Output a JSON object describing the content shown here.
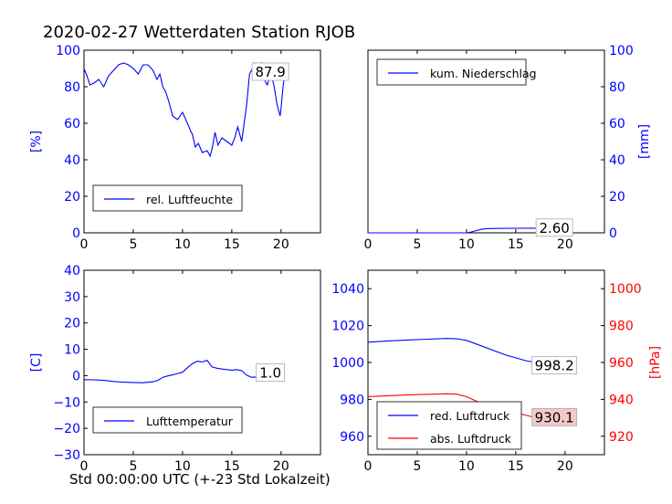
{
  "figure": {
    "title": "2020-02-27 Wetterdaten Station RJOB",
    "xlabel": "Std 00:00:00 UTC (+-23 Std Lokalzeit)"
  },
  "colors": {
    "blue": "#0000ff",
    "red": "#ff0000",
    "black": "#000000"
  },
  "chart_data": [
    {
      "type": "line",
      "panel": "top-left",
      "xlim": [
        0,
        24
      ],
      "ylim": [
        0,
        100
      ],
      "x_ticks": [
        "0",
        "5",
        "10",
        "15",
        "20"
      ],
      "y_ticks": [
        "0",
        "20",
        "40",
        "60",
        "80",
        "100"
      ],
      "ylabel": "[%]",
      "annotation": "87.9",
      "legend": "lower-left",
      "series": [
        {
          "name": "rel. Luftfeuchte",
          "color": "#0000ff",
          "points": [
            [
              0,
              90
            ],
            [
              0.3,
              86
            ],
            [
              0.6,
              81
            ],
            [
              1,
              82
            ],
            [
              1.5,
              84
            ],
            [
              2,
              80
            ],
            [
              2.5,
              86
            ],
            [
              3,
              89
            ],
            [
              3.5,
              92
            ],
            [
              4,
              93
            ],
            [
              4.5,
              92
            ],
            [
              5,
              90
            ],
            [
              5.5,
              87
            ],
            [
              6,
              92
            ],
            [
              6.5,
              92
            ],
            [
              7,
              89
            ],
            [
              7.4,
              84
            ],
            [
              7.7,
              87
            ],
            [
              8,
              80
            ],
            [
              8.3,
              77
            ],
            [
              8.6,
              72
            ],
            [
              9,
              64
            ],
            [
              9.5,
              62
            ],
            [
              10,
              66
            ],
            [
              10.5,
              60
            ],
            [
              10.8,
              56
            ],
            [
              11,
              54
            ],
            [
              11.3,
              47
            ],
            [
              11.6,
              49
            ],
            [
              12,
              44
            ],
            [
              12.5,
              45
            ],
            [
              12.8,
              42
            ],
            [
              13,
              46
            ],
            [
              13.3,
              55
            ],
            [
              13.6,
              48
            ],
            [
              14,
              52
            ],
            [
              14.5,
              50
            ],
            [
              15,
              48
            ],
            [
              15.3,
              52
            ],
            [
              15.6,
              58
            ],
            [
              16,
              50
            ],
            [
              16.5,
              70
            ],
            [
              16.8,
              87
            ],
            [
              17,
              89
            ],
            [
              17.3,
              93
            ],
            [
              17.6,
              90
            ],
            [
              18,
              93
            ],
            [
              18.3,
              84
            ],
            [
              18.6,
              81
            ],
            [
              19,
              87
            ],
            [
              19.3,
              80
            ],
            [
              19.6,
              70
            ],
            [
              19.9,
              64
            ],
            [
              20,
              68
            ],
            [
              20.2,
              80
            ],
            [
              20.4,
              88
            ]
          ]
        }
      ]
    },
    {
      "type": "line",
      "panel": "top-right",
      "xlim": [
        0,
        24
      ],
      "ylim": [
        0,
        100
      ],
      "x_ticks": [
        "0",
        "5",
        "10",
        "15",
        "20"
      ],
      "y_ticks": [
        "0",
        "20",
        "40",
        "60",
        "80",
        "100"
      ],
      "ylabel": "[mm]",
      "annotation": "2.60",
      "legend": "upper-left",
      "series": [
        {
          "name": "kum. Niederschlag",
          "color": "#0000ff",
          "points": [
            [
              0,
              0
            ],
            [
              10,
              0
            ],
            [
              10.5,
              0.5
            ],
            [
              11,
              1.2
            ],
            [
              11.5,
              1.9
            ],
            [
              12,
              2.3
            ],
            [
              13,
              2.4
            ],
            [
              15,
              2.5
            ],
            [
              18,
              2.55
            ],
            [
              20.4,
              2.6
            ]
          ]
        }
      ]
    },
    {
      "type": "line",
      "panel": "bottom-left",
      "xlim": [
        0,
        24
      ],
      "ylim": [
        -30,
        40
      ],
      "x_ticks": [
        "0",
        "5",
        "10",
        "15",
        "20"
      ],
      "y_ticks": [
        "−30",
        "−20",
        "−10",
        "0",
        "10",
        "20",
        "30",
        "40"
      ],
      "ylabel": "[C]",
      "annotation": "1.0",
      "legend": "lower-left",
      "series": [
        {
          "name": "Lufttemperatur",
          "color": "#0000ff",
          "points": [
            [
              0,
              -1.5
            ],
            [
              1,
              -1.6
            ],
            [
              2,
              -1.8
            ],
            [
              3,
              -2.2
            ],
            [
              4,
              -2.5
            ],
            [
              5,
              -2.6
            ],
            [
              6,
              -2.7
            ],
            [
              7,
              -2.3
            ],
            [
              7.5,
              -1.8
            ],
            [
              8,
              -0.6
            ],
            [
              8.5,
              -0.1
            ],
            [
              9,
              0.3
            ],
            [
              9.5,
              0.8
            ],
            [
              10,
              1.3
            ],
            [
              10.5,
              3
            ],
            [
              11,
              4.6
            ],
            [
              11.5,
              5.5
            ],
            [
              12,
              5.2
            ],
            [
              12.5,
              5.8
            ],
            [
              13,
              3.3
            ],
            [
              13.5,
              2.8
            ],
            [
              14,
              2.5
            ],
            [
              15,
              2.1
            ],
            [
              15.5,
              2.3
            ],
            [
              16,
              1.9
            ],
            [
              16.5,
              0.2
            ],
            [
              17,
              -0.6
            ],
            [
              17.5,
              -0.5
            ],
            [
              18,
              0
            ],
            [
              18.5,
              -0.2
            ],
            [
              19,
              0.5
            ],
            [
              19.5,
              1.5
            ],
            [
              20,
              1.5
            ],
            [
              20.4,
              1.0
            ]
          ]
        }
      ]
    },
    {
      "type": "line",
      "panel": "bottom-right",
      "xlim": [
        0,
        24
      ],
      "ylim": [
        950,
        1050
      ],
      "ylim_right": [
        910,
        1010
      ],
      "x_ticks": [
        "0",
        "5",
        "10",
        "15",
        "20"
      ],
      "y_ticks": [
        "960",
        "980",
        "1000",
        "1020",
        "1040"
      ],
      "y_ticks_right": [
        "920",
        "940",
        "960",
        "980",
        "1000"
      ],
      "ylabel_right": "[hPa]",
      "annotations": [
        "998.2",
        "930.1"
      ],
      "legend": "lower-left",
      "series": [
        {
          "name": "red. Luftdruck",
          "color": "#0000ff",
          "axis": "left",
          "points": [
            [
              0,
              1011
            ],
            [
              2,
              1011.7
            ],
            [
              4,
              1012.2
            ],
            [
              6,
              1012.6
            ],
            [
              8,
              1013
            ],
            [
              9,
              1012.8
            ],
            [
              10,
              1012
            ],
            [
              11,
              1010
            ],
            [
              12,
              1008
            ],
            [
              13,
              1006
            ],
            [
              14,
              1004
            ],
            [
              15,
              1002.5
            ],
            [
              16,
              1001
            ],
            [
              17,
              1000
            ],
            [
              18,
              998.5
            ],
            [
              19,
              996
            ],
            [
              20,
              995.5
            ],
            [
              20.4,
              998.2
            ]
          ]
        },
        {
          "name": "abs. Luftdruck",
          "color": "#ff0000",
          "axis": "right",
          "points": [
            [
              0,
              941.5
            ],
            [
              2,
              942
            ],
            [
              4,
              942.5
            ],
            [
              6,
              942.7
            ],
            [
              8,
              943
            ],
            [
              9,
              942.8
            ],
            [
              10,
              941.5
            ],
            [
              11,
              939
            ],
            [
              12,
              937
            ],
            [
              13,
              935
            ],
            [
              14,
              933.5
            ],
            [
              15,
              932.5
            ],
            [
              16,
              931.5
            ],
            [
              17,
              930
            ],
            [
              18,
              928.5
            ],
            [
              19,
              927
            ],
            [
              20,
              927.5
            ],
            [
              20.4,
              930.1
            ]
          ]
        }
      ]
    }
  ]
}
